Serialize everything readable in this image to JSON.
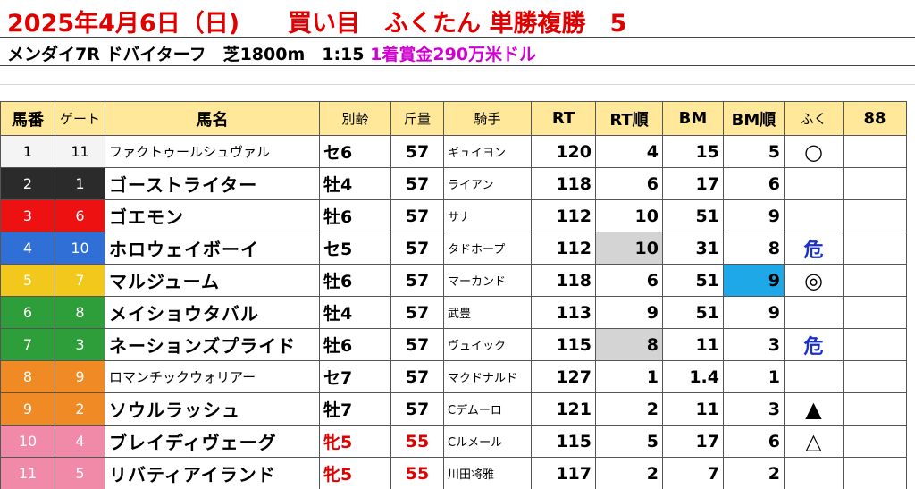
{
  "header": {
    "title": "2025年4月6日（日)　　買い目　ふくたん 単勝複勝　5",
    "race": "メンダイ7R ドバイターフ　芝1800m　1:15",
    "prize": "1着賞金290万米ドル"
  },
  "columns": [
    "馬番",
    "ゲート",
    "馬名",
    "別齢",
    "斤量",
    "騎手",
    "RT",
    "RT順",
    "BM",
    "BM順",
    "ふく",
    "88"
  ],
  "rows": [
    {
      "num": "1",
      "gate": "11",
      "name": "ファクトゥールシュヴァル",
      "sex": "セ6",
      "kin": "57",
      "jockey": "ギュイヨン",
      "rt": "120",
      "rt_rank": "4",
      "bm": "15",
      "bm_rank": "5",
      "mark": "○",
      "extra": ""
    },
    {
      "num": "2",
      "gate": "1",
      "name": "ゴーストライター",
      "sex": "牡4",
      "kin": "57",
      "jockey": "ライアン",
      "rt": "118",
      "rt_rank": "6",
      "bm": "17",
      "bm_rank": "6",
      "mark": "",
      "extra": ""
    },
    {
      "num": "3",
      "gate": "6",
      "name": "ゴエモン",
      "sex": "牡6",
      "kin": "57",
      "jockey": "サナ",
      "rt": "112",
      "rt_rank": "10",
      "bm": "51",
      "bm_rank": "9",
      "mark": "",
      "extra": ""
    },
    {
      "num": "4",
      "gate": "10",
      "name": "ホロウェイボーイ",
      "sex": "セ5",
      "kin": "57",
      "jockey": "タドホープ",
      "rt": "112",
      "rt_rank": "10",
      "bm": "31",
      "bm_rank": "8",
      "mark": "危",
      "extra": ""
    },
    {
      "num": "5",
      "gate": "7",
      "name": "マルジューム",
      "sex": "牡6",
      "kin": "57",
      "jockey": "マーカンド",
      "rt": "118",
      "rt_rank": "6",
      "bm": "51",
      "bm_rank": "9",
      "mark": "◎",
      "extra": ""
    },
    {
      "num": "6",
      "gate": "8",
      "name": "メイショウタバル",
      "sex": "牡4",
      "kin": "57",
      "jockey": "武豊",
      "rt": "113",
      "rt_rank": "9",
      "bm": "51",
      "bm_rank": "9",
      "mark": "",
      "extra": ""
    },
    {
      "num": "7",
      "gate": "3",
      "name": "ネーションズプライド",
      "sex": "牡6",
      "kin": "57",
      "jockey": "ヴュイック",
      "rt": "115",
      "rt_rank": "8",
      "bm": "11",
      "bm_rank": "3",
      "mark": "危",
      "extra": ""
    },
    {
      "num": "8",
      "gate": "9",
      "name": "ロマンチックウォリアー",
      "sex": "セ7",
      "kin": "57",
      "jockey": "マクドナルド",
      "rt": "127",
      "rt_rank": "1",
      "bm": "1.4",
      "bm_rank": "1",
      "mark": "",
      "extra": ""
    },
    {
      "num": "9",
      "gate": "2",
      "name": "ソウルラッシュ",
      "sex": "牡7",
      "kin": "57",
      "jockey": "Cデムーロ",
      "rt": "121",
      "rt_rank": "2",
      "bm": "11",
      "bm_rank": "3",
      "mark": "▲",
      "extra": ""
    },
    {
      "num": "10",
      "gate": "4",
      "name": "ブレイディヴェーグ",
      "sex": "牝5",
      "kin": "55",
      "jockey": "Cルメール",
      "rt": "115",
      "rt_rank": "5",
      "bm": "17",
      "bm_rank": "6",
      "mark": "△",
      "extra": ""
    },
    {
      "num": "11",
      "gate": "5",
      "name": "リバティアイランド",
      "sex": "牝5",
      "kin": "55",
      "jockey": "川田将雅",
      "rt": "117",
      "rt_rank": "2",
      "bm": "7",
      "bm_rank": "2",
      "mark": "",
      "extra": ""
    }
  ],
  "colors": {
    "title_red": "#e00000",
    "prize_magenta": "#d000d0",
    "header_yellow": "#ffe89a",
    "mark_blue": "#1a2fcf",
    "highlight_blue": "#1fa8e8",
    "highlight_gray": "#d4d4d4",
    "frame_colors": [
      "#f4f4f4",
      "#2b2b2b",
      "#ee1111",
      "#2f6fd6",
      "#f2c81c",
      "#2e9e3a",
      "#2e9e3a",
      "#f08a24",
      "#f08a24",
      "#f08aa8",
      "#f08aa8"
    ],
    "frame_text": [
      "#000000",
      "#ffffff",
      "#ffffff",
      "#ffffff",
      "#ffffff",
      "#ffffff",
      "#ffffff",
      "#ffffff",
      "#ffffff",
      "#ffffff",
      "#ffffff"
    ]
  }
}
